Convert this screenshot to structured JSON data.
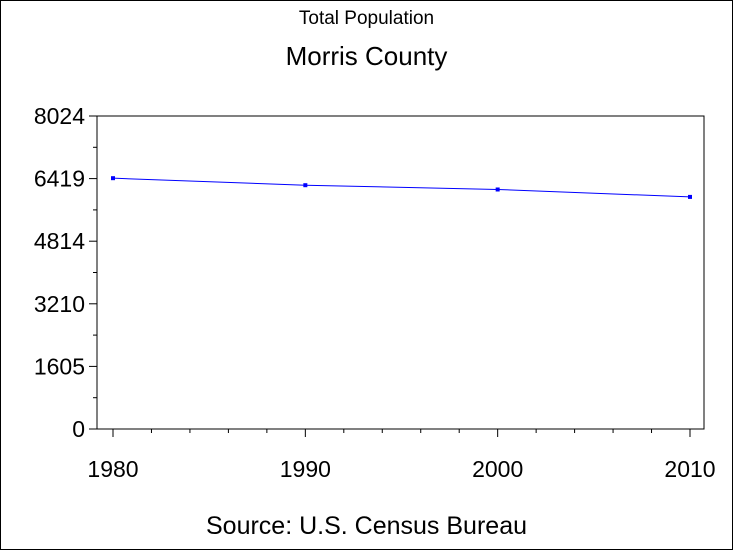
{
  "chart_data": {
    "type": "line",
    "title": "Morris County",
    "supertitle": "Total Population",
    "footnote": "Source: U.S. Census Bureau",
    "x": [
      1980,
      1990,
      2000,
      2010
    ],
    "xticks": [
      "1980",
      "1990",
      "2000",
      "2010"
    ],
    "xlim": [
      1980,
      2010
    ],
    "series": [
      {
        "values": [
          6430,
          6250,
          6140,
          5950
        ]
      }
    ],
    "yticks": [
      "0",
      "1605",
      "3210",
      "4814",
      "6419",
      "8024"
    ],
    "ylim": [
      0,
      8024
    ],
    "minor_ticks_per_interval": 1,
    "x_minor_ticks_per_interval": 4,
    "grid": false,
    "line_color": "#0000ff",
    "marker_color": "#0000ff"
  }
}
